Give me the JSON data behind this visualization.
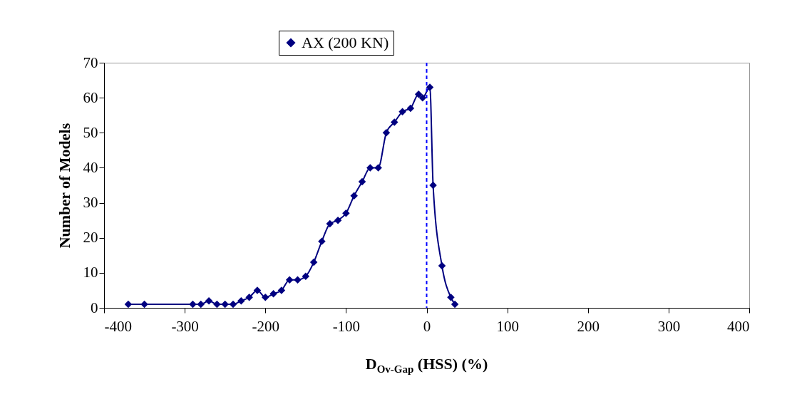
{
  "chart_data": {
    "type": "line",
    "xlabel": "D$_{Ov-Gap}$ (HSS) (%)",
    "ylabel": "Number of Models",
    "xlim": [
      -400,
      400
    ],
    "xticks": [
      -400,
      -300,
      -200,
      -100,
      0,
      100,
      200,
      300,
      400
    ],
    "ylim": [
      0,
      70
    ],
    "yticks": [
      0,
      10,
      20,
      30,
      40,
      50,
      60,
      70
    ],
    "x": [
      -370,
      -350,
      -290,
      -280,
      -270,
      -260,
      -250,
      -240,
      -230,
      -220,
      -210,
      -200,
      -190,
      -180,
      -170,
      -160,
      -150,
      -140,
      -130,
      -120,
      -110,
      -100,
      -90,
      -80,
      -70,
      -60,
      -50,
      -40,
      -30,
      -20,
      -10,
      -5,
      4,
      8,
      19,
      30,
      35
    ],
    "series": [
      {
        "name": "AX (200 KN)",
        "color": "#000080",
        "values": [
          1,
          1,
          1,
          1,
          2,
          1,
          1,
          1,
          2,
          3,
          5,
          3,
          4,
          5,
          8,
          8,
          9,
          13,
          19,
          24,
          25,
          27,
          32,
          36,
          40,
          40,
          50,
          53,
          56,
          57,
          61,
          60,
          63,
          35,
          12,
          3,
          1
        ]
      }
    ],
    "ref_lines": [
      {
        "axis": "x",
        "value": 0,
        "color": "#0000ff",
        "line_style": "dashed"
      }
    ],
    "grid": false,
    "legend": "top",
    "marker": "diamond"
  }
}
